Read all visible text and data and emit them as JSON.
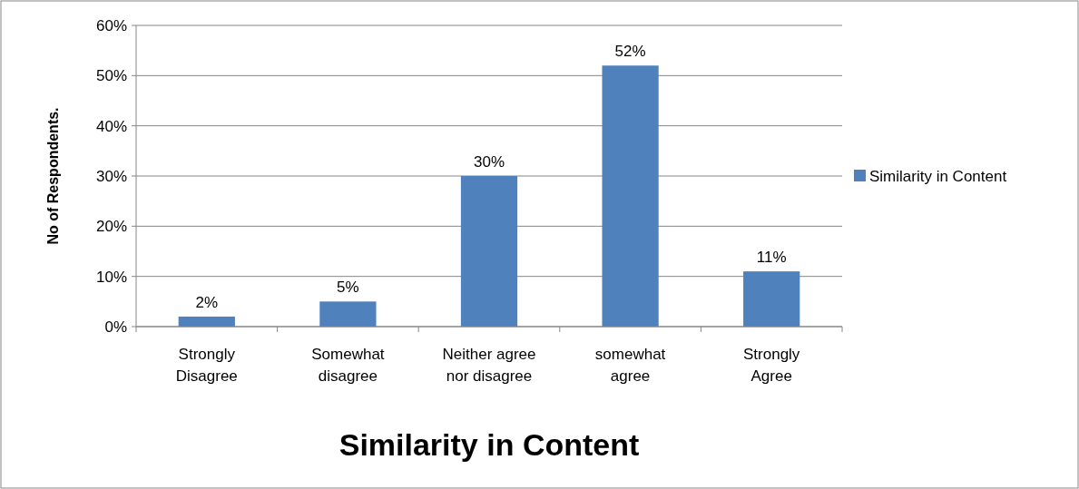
{
  "chart_data": {
    "type": "bar",
    "xlabel": "Similarity in Content",
    "ylabel": "No of Respondents.",
    "categories": [
      "Strongly Disagree",
      "Somewhat disagree",
      "Neither agree nor disagree",
      "somewhat agree",
      "Strongly Agree"
    ],
    "series": [
      {
        "name": "Similarity in Content",
        "color": "#4f81bd",
        "values": [
          2,
          5,
          30,
          52,
          11
        ],
        "value_labels": [
          "2%",
          "5%",
          "30%",
          "52%",
          "11%"
        ]
      }
    ],
    "ylim": [
      0,
      60
    ],
    "yticks": [
      {
        "value": 0,
        "label": "0%"
      },
      {
        "value": 10,
        "label": "10%"
      },
      {
        "value": 20,
        "label": "20%"
      },
      {
        "value": 30,
        "label": "30%"
      },
      {
        "value": 40,
        "label": "40%"
      },
      {
        "value": 50,
        "label": "50%"
      },
      {
        "value": 60,
        "label": "60%"
      }
    ],
    "grid": "y",
    "legend": "right"
  }
}
